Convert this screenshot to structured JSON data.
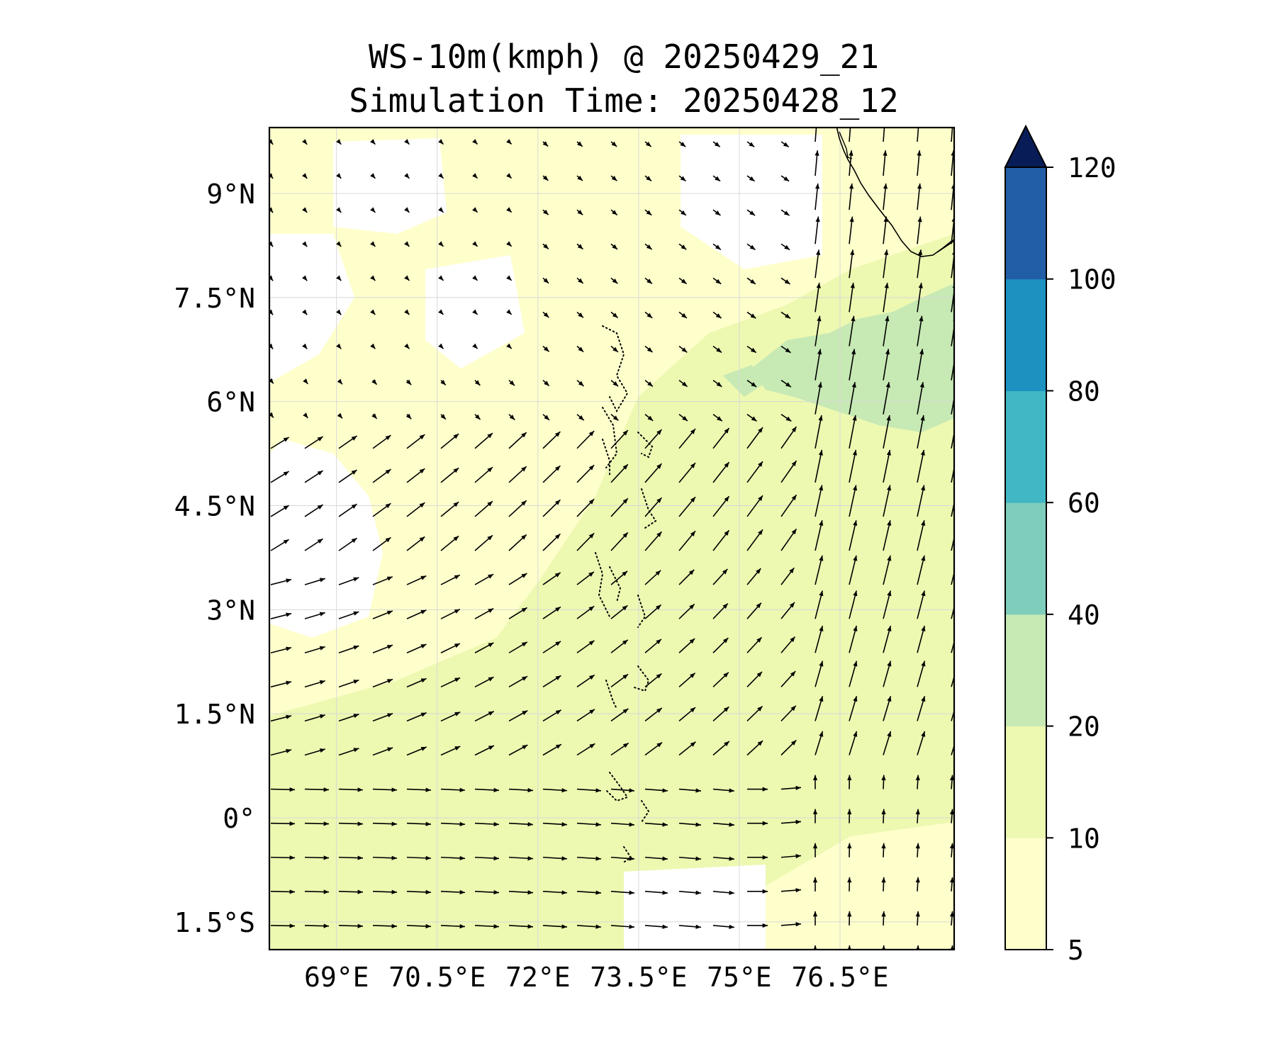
{
  "title": {
    "line1": "WS-10m(kmph) @ 20250429_21",
    "line2": "Simulation Time: 20250428_12"
  },
  "map": {
    "lon_range": [
      68.0,
      78.2
    ],
    "lat_range": [
      -1.9,
      9.95
    ],
    "lat_ticks": [
      {
        "value": 9.0,
        "label": "9°N"
      },
      {
        "value": 7.5,
        "label": "7.5°N"
      },
      {
        "value": 6.0,
        "label": "6°N"
      },
      {
        "value": 4.5,
        "label": "4.5°N"
      },
      {
        "value": 3.0,
        "label": "3°N"
      },
      {
        "value": 1.5,
        "label": "1.5°N"
      },
      {
        "value": 0.0,
        "label": "0°"
      },
      {
        "value": -1.5,
        "label": "1.5°S"
      }
    ],
    "lon_ticks": [
      {
        "value": 69.0,
        "label": "69°E"
      },
      {
        "value": 70.5,
        "label": "70.5°E"
      },
      {
        "value": 72.0,
        "label": "72°E"
      },
      {
        "value": 73.5,
        "label": "73.5°E"
      },
      {
        "value": 75.0,
        "label": "75°E"
      },
      {
        "value": 76.5,
        "label": "76.5°E"
      }
    ],
    "grid": true,
    "land_outline": "southern India coastline (top-right)",
    "islands": "Maldives atolls (dotted outlines)"
  },
  "colorbar": {
    "levels": [
      5,
      10,
      20,
      40,
      60,
      80,
      100,
      120
    ],
    "labels": [
      "5",
      "10",
      "20",
      "40",
      "60",
      "80",
      "100",
      "120"
    ],
    "colors": [
      "#ffffcc",
      "#edf8b1",
      "#c7e9b4",
      "#7fcdbb",
      "#41b6c4",
      "#1d91c0",
      "#225ea8",
      "#0c2c84"
    ],
    "extend_color": "#081d58",
    "extend": "max"
  },
  "chart_data": {
    "type": "map",
    "variable": "WS-10m(kmph)",
    "valid_time": "20250429_21",
    "simulation_time": "20250428_12",
    "field_summary": [
      {
        "region": "far south-west (68-71.5E, 2S-1.5N)",
        "speed_kmph": "10-20",
        "direction": "westerly / east-going"
      },
      {
        "region": "north-west (68-72E, 6-10N)",
        "speed_kmph": "<5",
        "direction": "light and variable"
      },
      {
        "region": "central (72-75E, 1-6N)",
        "speed_kmph": "10-20",
        "direction": "south-westerly"
      },
      {
        "region": "north-east (75-78E, 5-8N)",
        "speed_kmph": "20-40",
        "direction": "south-south-westerly"
      },
      {
        "region": "south-east (75-78E, 2S-1N)",
        "speed_kmph": "5-10",
        "direction": "southerly"
      }
    ]
  }
}
